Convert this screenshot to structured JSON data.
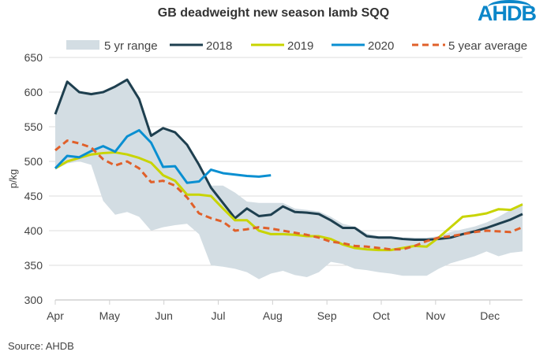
{
  "chart_data": {
    "type": "line",
    "title": "GB deadweight new season lamb SQQ",
    "ylabel": "p/kg",
    "xlabel": "",
    "ylim": [
      300,
      650
    ],
    "yticks": [
      300,
      350,
      400,
      450,
      500,
      550,
      600,
      650
    ],
    "months": [
      "Apr",
      "May",
      "Jun",
      "Jul",
      "Aug",
      "Sep",
      "Oct",
      "Nov",
      "Dec"
    ],
    "legend_position": "top",
    "range": {
      "name": "5 yr range",
      "color": "#d3dde3",
      "lower": [
        488,
        497,
        500,
        495,
        443,
        423,
        427,
        420,
        400,
        405,
        408,
        410,
        395,
        350,
        348,
        345,
        340,
        330,
        338,
        342,
        336,
        333,
        340,
        355,
        352,
        345,
        343,
        340,
        338,
        335,
        335,
        335,
        345,
        353,
        358,
        363,
        370,
        363,
        368,
        370
      ],
      "upper": [
        568,
        615,
        600,
        597,
        600,
        608,
        618,
        590,
        540,
        548,
        542,
        524,
        495,
        465,
        465,
        455,
        442,
        440,
        440,
        440,
        432,
        430,
        428,
        420,
        410,
        406,
        396,
        392,
        392,
        390,
        390,
        390,
        392,
        398,
        402,
        406,
        412,
        420,
        430,
        440
      ]
    },
    "series": [
      {
        "name": "2018",
        "color": "#1e3f4f",
        "dash": false,
        "values": [
          568,
          615,
          600,
          597,
          600,
          608,
          618,
          590,
          537,
          548,
          542,
          524,
          495,
          462,
          440,
          418,
          432,
          421,
          423,
          435,
          427,
          426,
          424,
          415,
          404,
          404,
          392,
          390,
          390,
          388,
          387,
          387,
          388,
          390,
          395,
          399,
          404,
          410,
          416,
          424
        ]
      },
      {
        "name": "2019",
        "color": "#c8d400",
        "dash": false,
        "values": [
          490,
          500,
          505,
          510,
          512,
          513,
          510,
          505,
          498,
          480,
          472,
          452,
          452,
          450,
          432,
          415,
          415,
          400,
          395,
          395,
          394,
          392,
          392,
          388,
          380,
          375,
          373,
          372,
          372,
          375,
          378,
          377,
          390,
          405,
          420,
          422,
          425,
          431,
          430,
          438
        ]
      },
      {
        "name": "2020",
        "color": "#0a8fd1",
        "dash": false,
        "values": [
          490,
          508,
          506,
          515,
          522,
          514,
          536,
          545,
          527,
          492,
          493,
          469,
          471,
          488,
          483,
          481,
          479,
          478,
          480
        ]
      },
      {
        "name": "5 year average",
        "color": "#e0602a",
        "dash": true,
        "values": [
          516,
          530,
          526,
          520,
          503,
          494,
          500,
          490,
          470,
          472,
          465,
          448,
          425,
          418,
          413,
          400,
          402,
          405,
          403,
          400,
          397,
          394,
          390,
          384,
          382,
          378,
          377,
          375,
          373,
          373,
          378,
          385,
          390,
          392,
          395,
          398,
          400,
          399,
          398,
          405
        ]
      }
    ]
  },
  "source": "Source: AHDB",
  "logo": "AHDB"
}
